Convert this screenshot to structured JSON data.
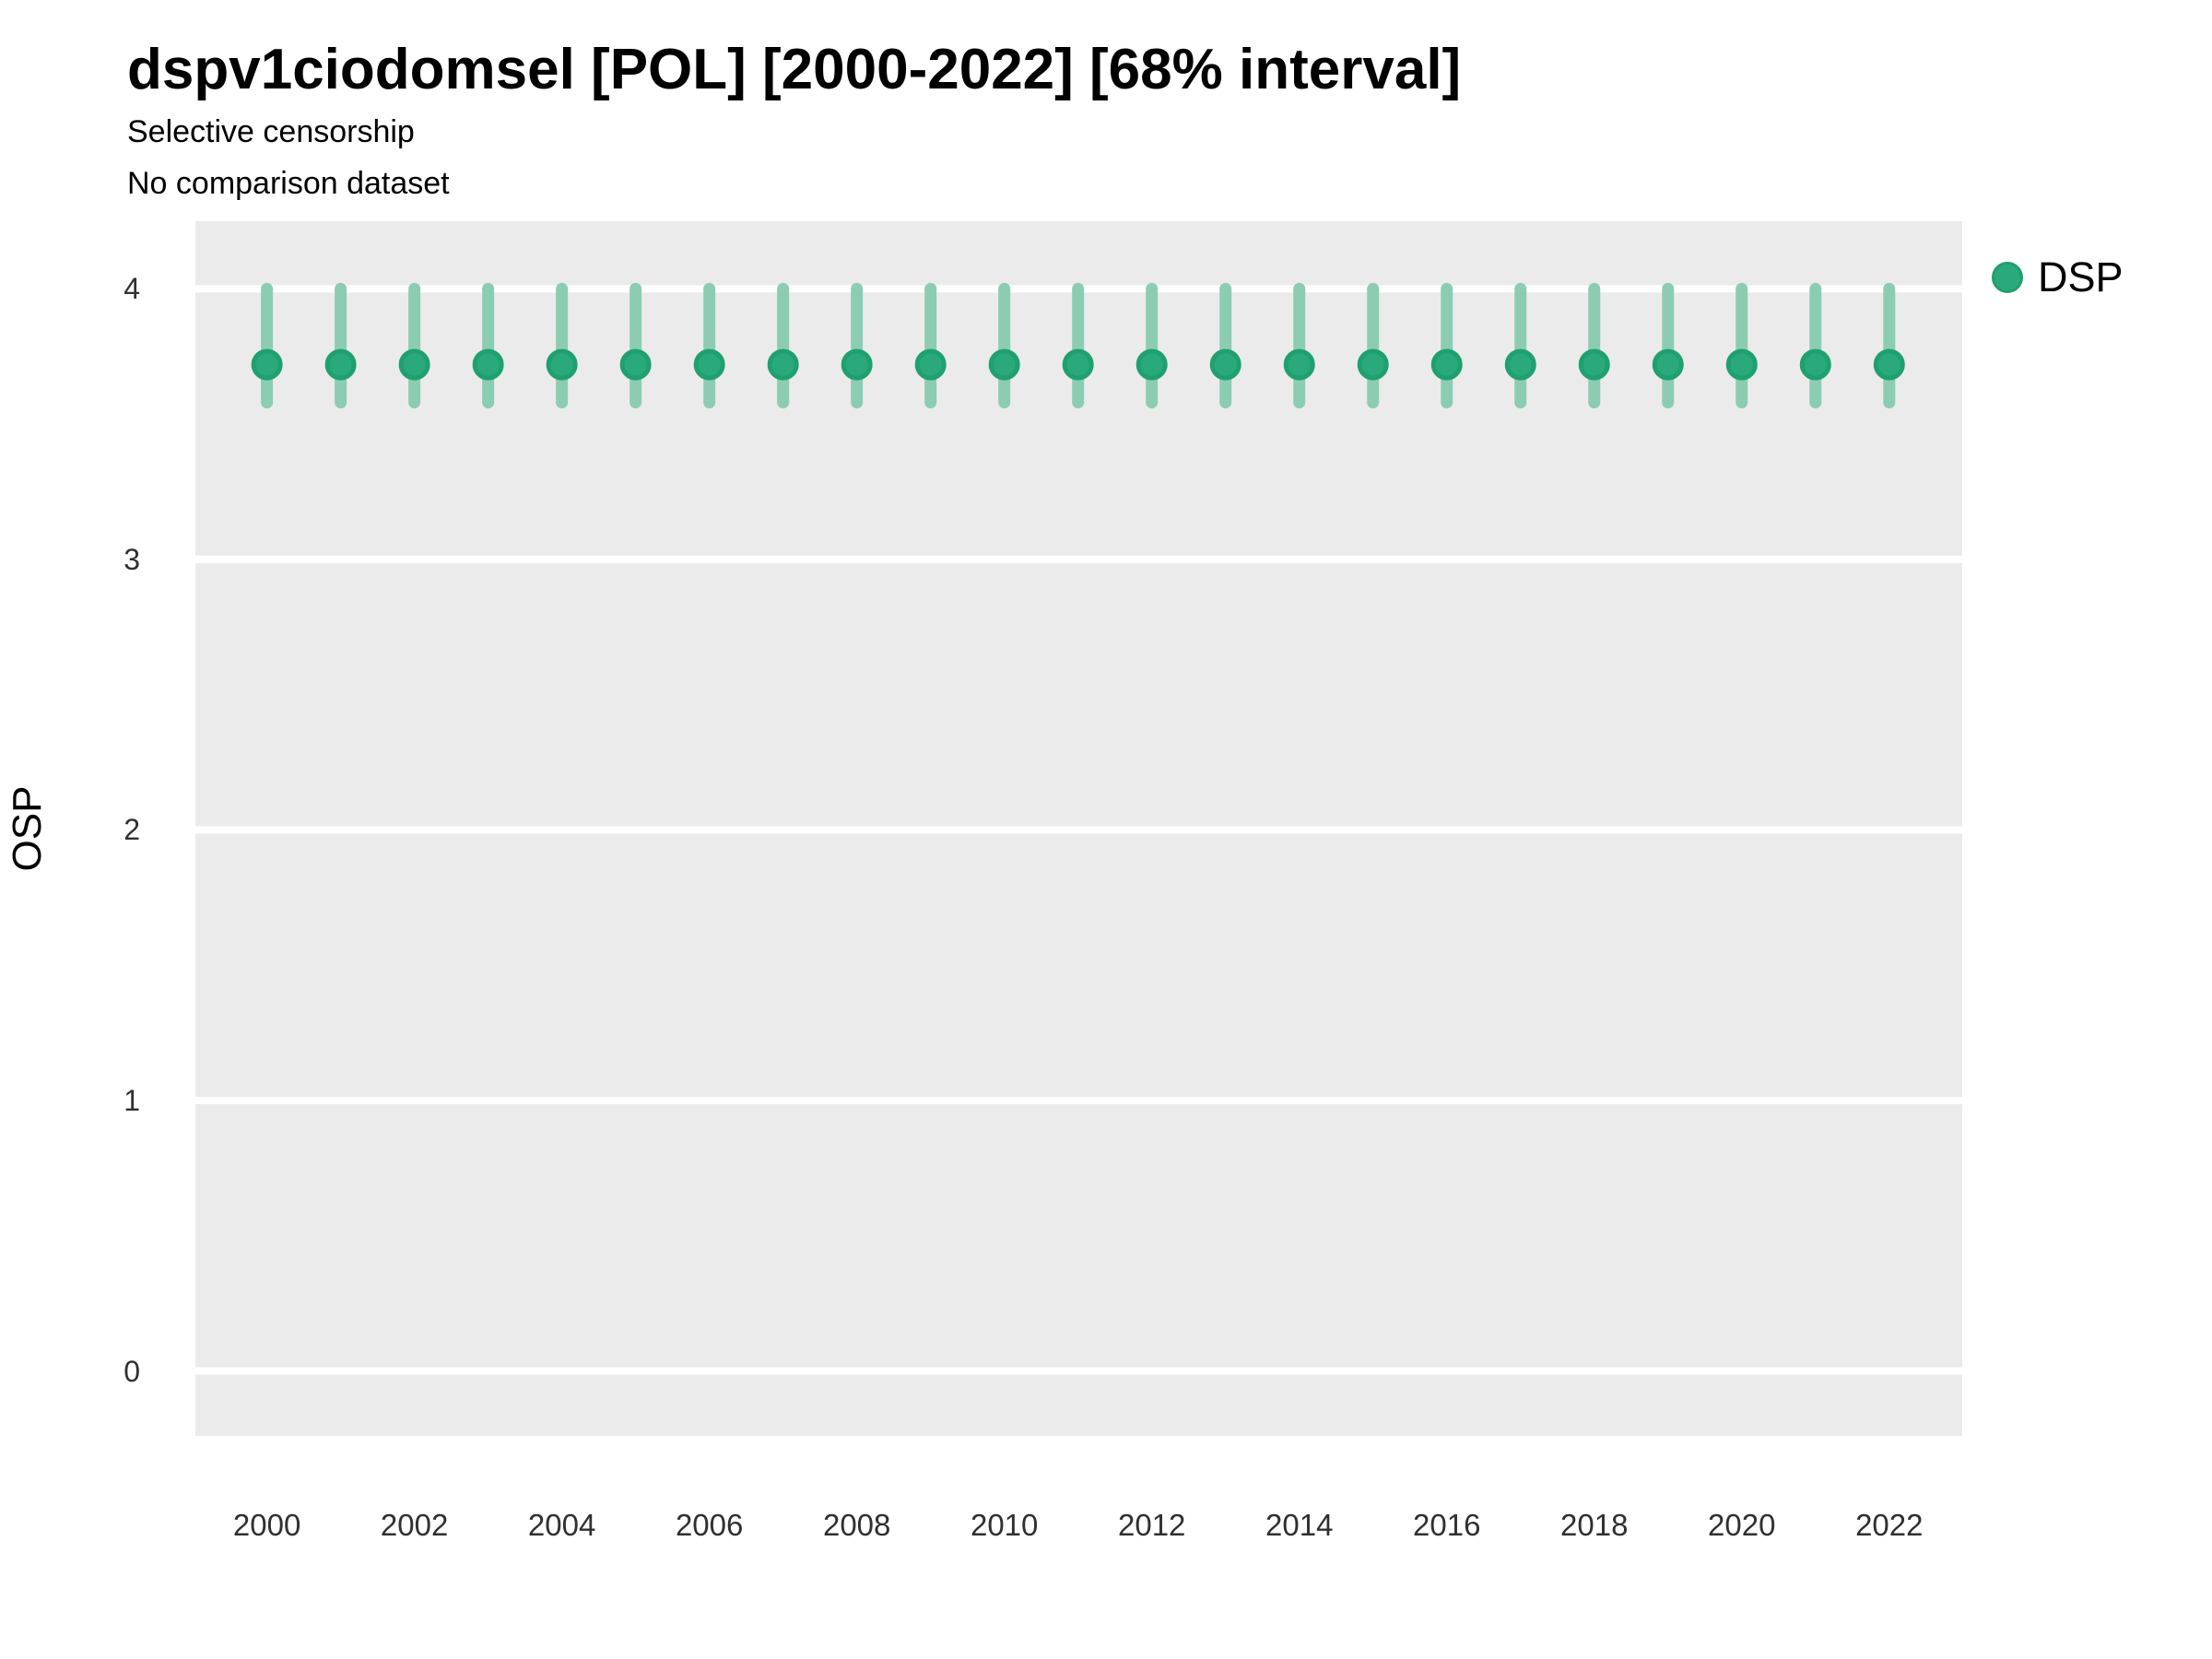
{
  "header": {
    "title": "dspv1ciodomsel [POL] [2000-2022] [68% interval]",
    "subtitle": "Selective censorship",
    "note": "No comparison dataset"
  },
  "y_axis": {
    "label": "OSP",
    "ticks": [
      "4",
      "3",
      "2",
      "1",
      "0"
    ]
  },
  "x_axis": {
    "ticks": [
      "2000",
      "2002",
      "2004",
      "2006",
      "2008",
      "2010",
      "2012",
      "2014",
      "2016",
      "2018",
      "2020",
      "2022"
    ]
  },
  "legend": {
    "position": "right",
    "items": [
      {
        "label": "DSP"
      }
    ]
  },
  "colors": {
    "panel_background": "#EBEBEB",
    "gridline": "#FFFFFF",
    "interval": "#8CCDB1",
    "point_fill": "#2AAA7B",
    "point_stroke": "#1FA06F",
    "axis_text": "#303030",
    "title_text": "#000000"
  },
  "chart_data": {
    "type": "scatter",
    "title": "dspv1ciodomsel [POL] [2000-2022] [68% interval]",
    "subtitle": "Selective censorship",
    "note": "No comparison dataset",
    "xlabel": "",
    "ylabel": "OSP",
    "legend_position": "right",
    "legend_entries": [
      "DSP"
    ],
    "grid": "horizontal-major-only",
    "interval_level": "68%",
    "xlim": [
      1999.03,
      2022.99
    ],
    "ylim": [
      -0.24,
      4.25
    ],
    "xticks": [
      2000,
      2002,
      2004,
      2006,
      2008,
      2010,
      2012,
      2014,
      2016,
      2018,
      2020,
      2022
    ],
    "yticks": [
      0,
      1,
      2,
      3,
      4
    ],
    "series": [
      {
        "name": "DSP",
        "x": [
          2000,
          2001,
          2002,
          2003,
          2004,
          2005,
          2006,
          2007,
          2008,
          2009,
          2010,
          2011,
          2012,
          2013,
          2014,
          2015,
          2016,
          2017,
          2018,
          2019,
          2020,
          2021,
          2022
        ],
        "point_estimates": [
          3.72,
          3.72,
          3.72,
          3.72,
          3.72,
          3.72,
          3.72,
          3.72,
          3.72,
          3.72,
          3.72,
          3.72,
          3.72,
          3.72,
          3.72,
          3.72,
          3.72,
          3.72,
          3.72,
          3.72,
          3.72,
          3.72,
          3.72
        ],
        "lower_68": [
          3.58,
          3.58,
          3.58,
          3.58,
          3.58,
          3.58,
          3.58,
          3.58,
          3.58,
          3.58,
          3.58,
          3.58,
          3.58,
          3.58,
          3.58,
          3.58,
          3.58,
          3.58,
          3.58,
          3.58,
          3.58,
          3.58,
          3.58
        ],
        "upper_68": [
          4.0,
          4.0,
          4.0,
          4.0,
          4.0,
          4.0,
          4.0,
          4.0,
          4.0,
          4.0,
          4.0,
          4.0,
          4.0,
          4.0,
          4.0,
          4.0,
          4.0,
          4.0,
          4.0,
          4.0,
          4.0,
          4.0,
          4.0
        ]
      }
    ]
  }
}
